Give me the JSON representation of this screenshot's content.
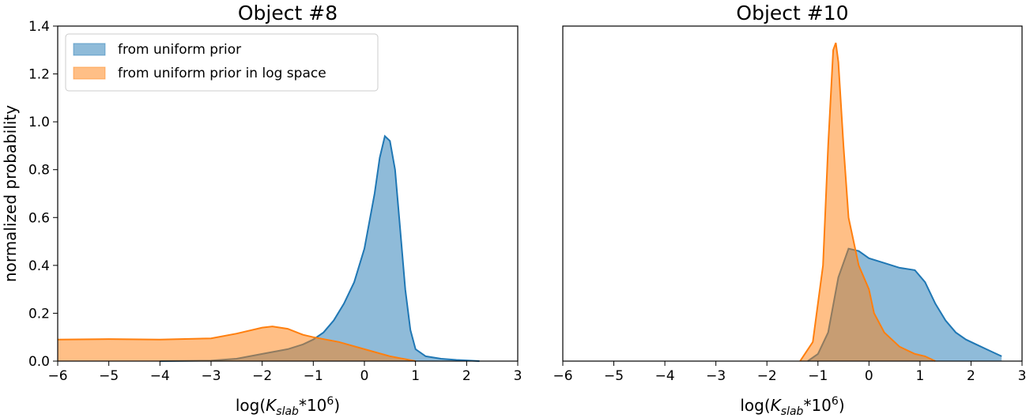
{
  "chart_data": [
    {
      "type": "area",
      "title": "Object #8",
      "y_label": "normalized probability",
      "x_label": [
        "log(",
        "K",
        "slab",
        "*10",
        "6",
        ")"
      ],
      "xlim": [
        -6,
        3
      ],
      "xticks": [
        {
          "value": -6,
          "label": "−6"
        },
        {
          "value": -5,
          "label": "−5"
        },
        {
          "value": -4,
          "label": "−4"
        },
        {
          "value": -3,
          "label": "−3"
        },
        {
          "value": -2,
          "label": "−2"
        },
        {
          "value": -1,
          "label": "−1"
        },
        0,
        1,
        2,
        3
      ],
      "ylim": [
        0,
        1.4
      ],
      "yticks": [
        {
          "value": 0,
          "label": "0.0"
        },
        0.2,
        0.4,
        0.6,
        0.8,
        {
          "value": 1,
          "label": "1.0"
        },
        1.2,
        1.4
      ],
      "legend": "upper left",
      "series": [
        {
          "name": "from uniform prior",
          "color": "#1f77b4",
          "x": [
            -4,
            -3,
            -2.5,
            -2,
            -1.5,
            -1.2,
            -1,
            -0.8,
            -0.6,
            -0.4,
            -0.2,
            0,
            0.2,
            0.3,
            0.4,
            0.5,
            0.6,
            0.7,
            0.8,
            0.9,
            1.0,
            1.2,
            1.5,
            1.8,
            2.0,
            2.25
          ],
          "values": [
            0,
            0.002,
            0.01,
            0.03,
            0.05,
            0.07,
            0.09,
            0.12,
            0.17,
            0.24,
            0.33,
            0.47,
            0.7,
            0.85,
            0.94,
            0.92,
            0.8,
            0.55,
            0.3,
            0.13,
            0.05,
            0.02,
            0.01,
            0.005,
            0.003,
            0
          ]
        },
        {
          "name": "from uniform prior in log space",
          "color": "#ff7f0e",
          "x": [
            -6,
            -5,
            -4,
            -3,
            -2.5,
            -2,
            -1.8,
            -1.5,
            -1.2,
            -1,
            -0.5,
            0,
            0.5,
            1.0
          ],
          "values": [
            0.09,
            0.092,
            0.09,
            0.095,
            0.115,
            0.14,
            0.145,
            0.135,
            0.11,
            0.1,
            0.08,
            0.05,
            0.02,
            0
          ]
        }
      ]
    },
    {
      "type": "area",
      "title": "Object #10",
      "x_label": [
        "log(",
        "K",
        "slab",
        "*10",
        "6",
        ")"
      ],
      "xlim": [
        -6,
        3
      ],
      "xticks": [
        {
          "value": -6,
          "label": "−6"
        },
        {
          "value": -5,
          "label": "−5"
        },
        {
          "value": -4,
          "label": "−4"
        },
        {
          "value": -3,
          "label": "−3"
        },
        {
          "value": -2,
          "label": "−2"
        },
        {
          "value": -1,
          "label": "−1"
        },
        0,
        1,
        2,
        3
      ],
      "ylim": [
        0,
        1.4
      ],
      "yticks": [],
      "series": [
        {
          "color": "#1f77b4",
          "x": [
            -1.2,
            -1.0,
            -0.8,
            -0.6,
            -0.4,
            -0.2,
            0,
            0.3,
            0.6,
            0.9,
            1.1,
            1.3,
            1.5,
            1.7,
            1.9,
            2.1,
            2.3,
            2.5,
            2.6
          ],
          "values": [
            0,
            0.03,
            0.12,
            0.35,
            0.47,
            0.46,
            0.43,
            0.41,
            0.39,
            0.38,
            0.33,
            0.24,
            0.17,
            0.12,
            0.09,
            0.07,
            0.05,
            0.03,
            0.02
          ]
        },
        {
          "color": "#ff7f0e",
          "x": [
            -1.35,
            -1.1,
            -0.9,
            -0.8,
            -0.7,
            -0.65,
            -0.6,
            -0.5,
            -0.4,
            -0.2,
            0,
            0.1,
            0.3,
            0.6,
            0.9,
            1.1,
            1.3
          ],
          "values": [
            0,
            0.08,
            0.4,
            0.9,
            1.3,
            1.33,
            1.25,
            0.9,
            0.6,
            0.4,
            0.3,
            0.2,
            0.12,
            0.06,
            0.03,
            0.02,
            0
          ]
        }
      ]
    }
  ]
}
